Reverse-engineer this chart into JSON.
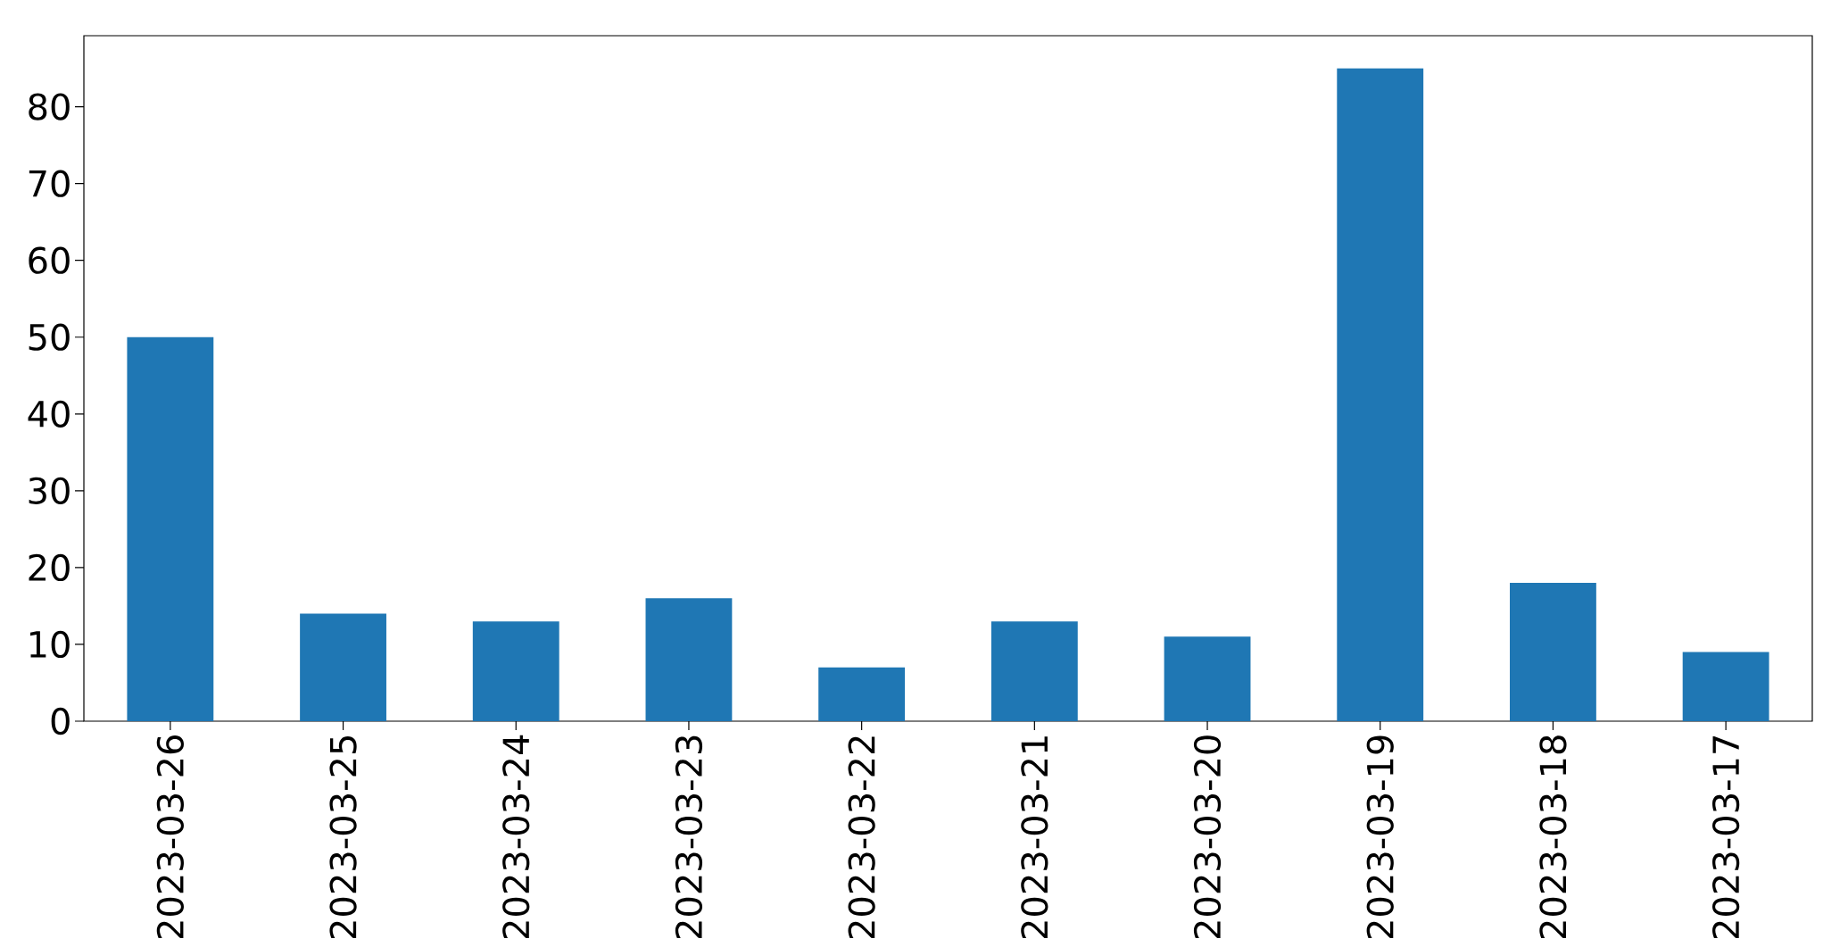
{
  "chart_data": {
    "type": "bar",
    "categories": [
      "2023-03-26",
      "2023-03-25",
      "2023-03-24",
      "2023-03-23",
      "2023-03-22",
      "2023-03-21",
      "2023-03-20",
      "2023-03-19",
      "2023-03-18",
      "2023-03-17"
    ],
    "values": [
      50,
      14,
      13,
      16,
      7,
      13,
      11,
      85,
      18,
      9
    ],
    "color": "#1f77b4",
    "ylim": [
      0,
      89.25
    ],
    "yticks": [
      0,
      10,
      20,
      30,
      40,
      50,
      60,
      70,
      80
    ]
  }
}
